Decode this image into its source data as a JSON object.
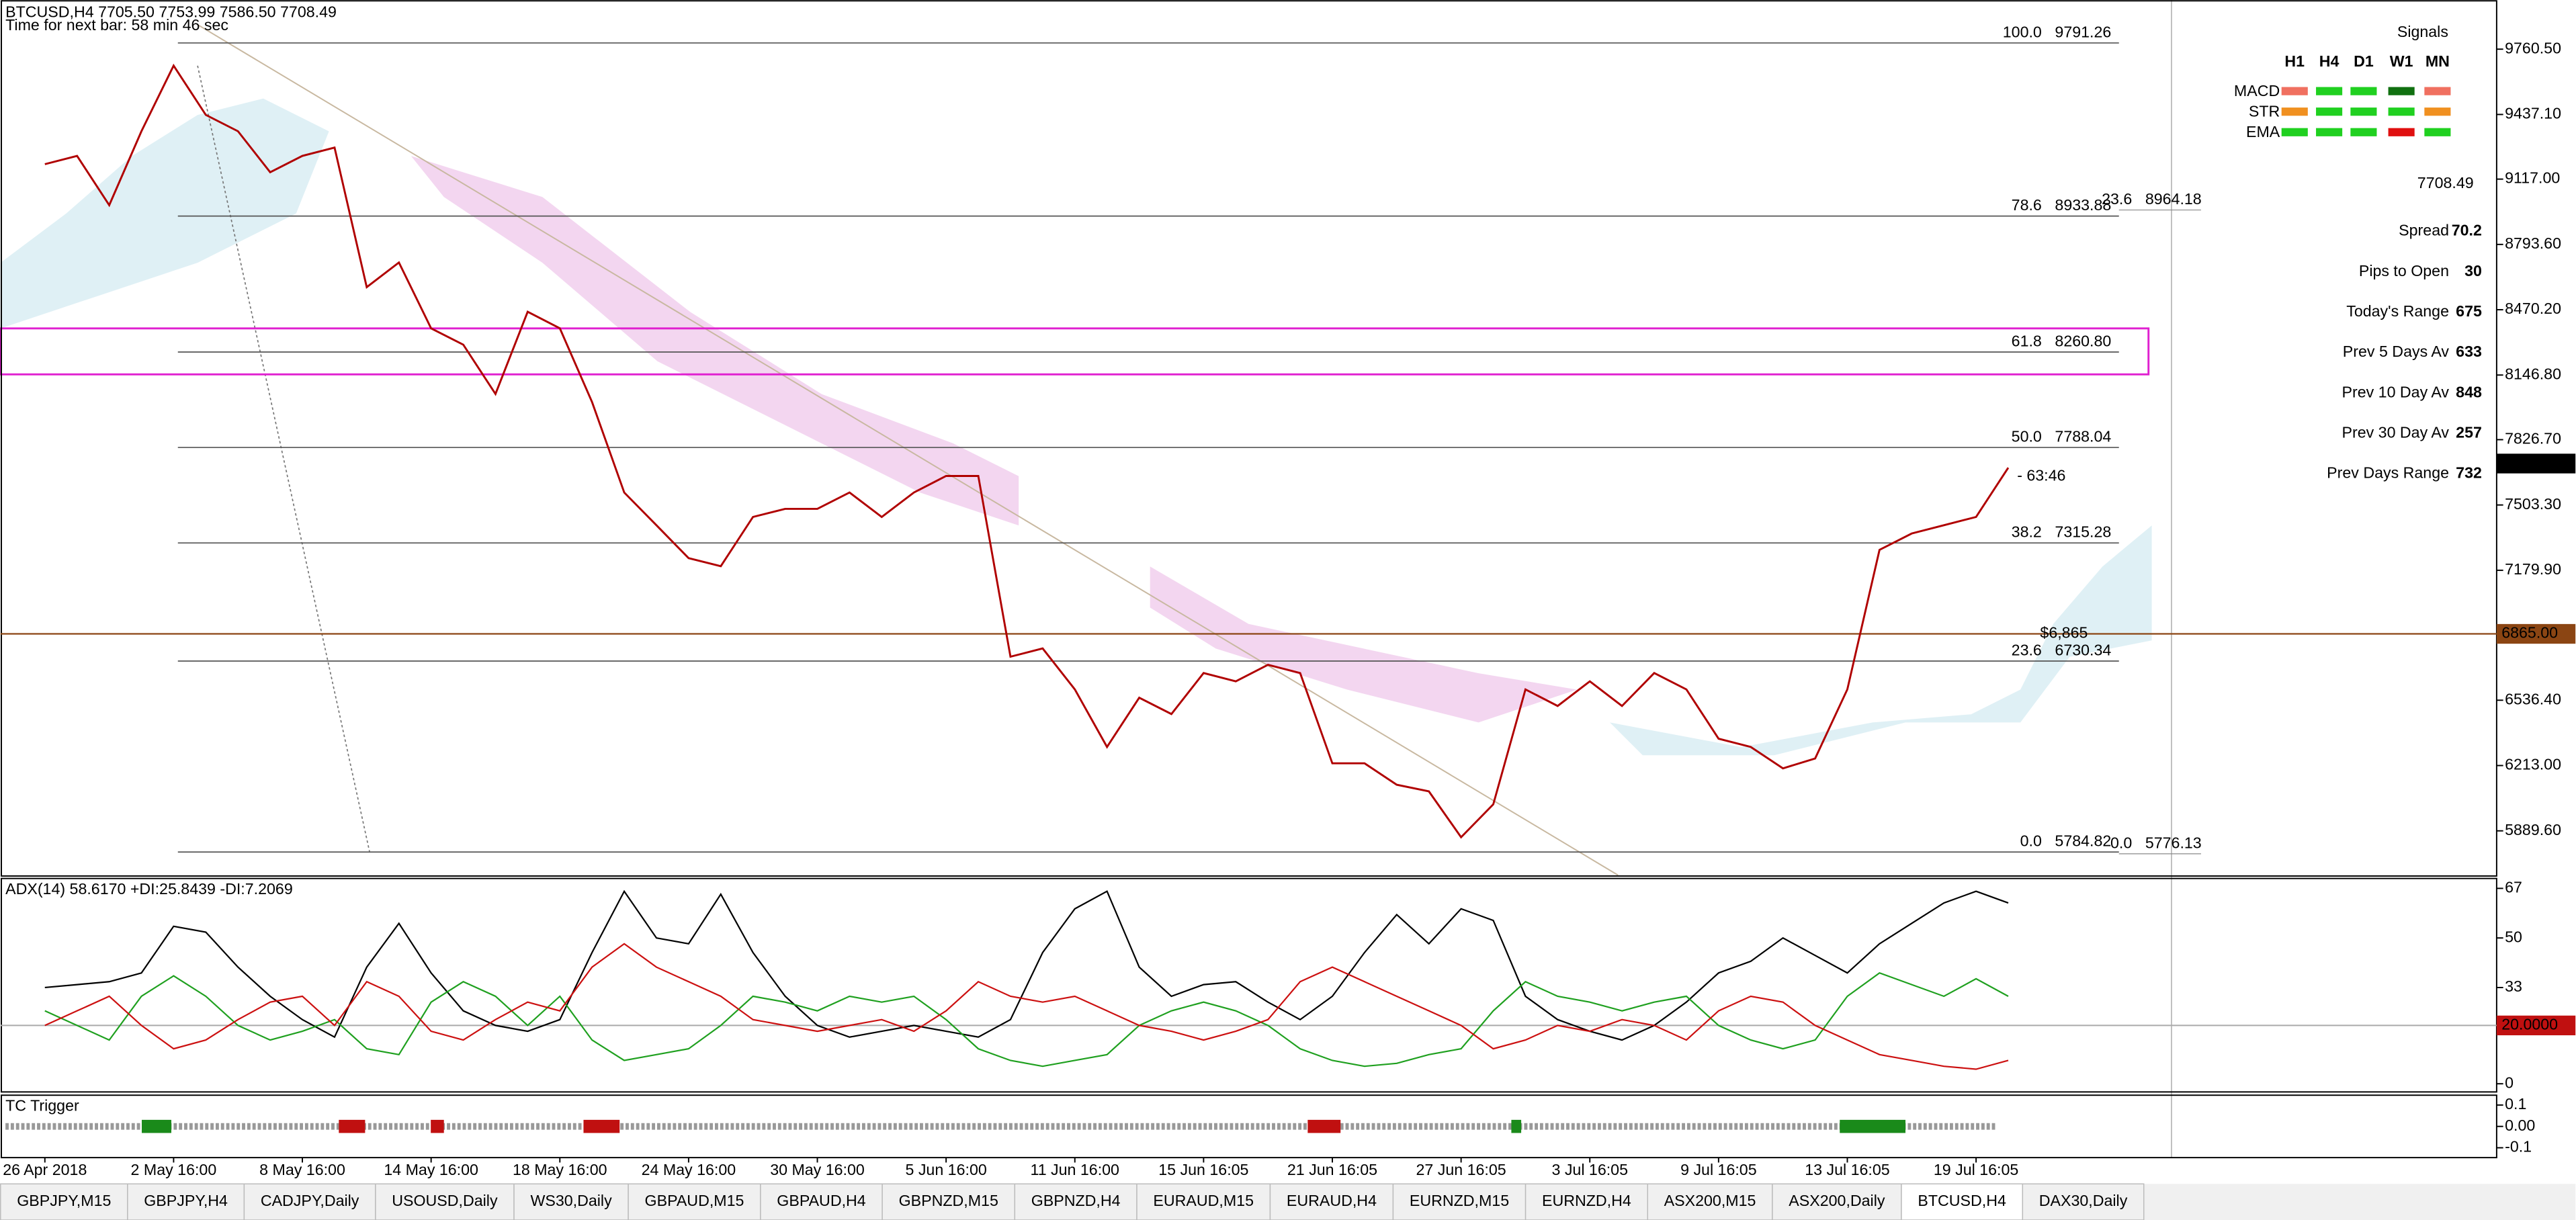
{
  "chart_data": [
    {
      "type": "line",
      "title": "BTCUSD,H4  7705.50 7753.99 7586.50 7708.49",
      "subtitle": "Time for next bar: 58 min 46 sec",
      "categories": [
        "26 Apr 2018",
        null,
        null,
        null,
        "2 May 16:00",
        null,
        null,
        null,
        "8 May 16:00",
        null,
        null,
        null,
        "14 May 16:00",
        null,
        null,
        null,
        "18 May 16:00",
        null,
        null,
        null,
        "24 May 16:00",
        null,
        null,
        null,
        "30 May 16:00",
        null,
        null,
        null,
        "5 Jun 16:00",
        null,
        null,
        null,
        "11 Jun 16:00",
        null,
        null,
        null,
        "15 Jun 16:05",
        null,
        null,
        null,
        "21 Jun 16:05",
        null,
        null,
        null,
        "27 Jun 16:05",
        null,
        null,
        null,
        "3 Jul 16:05",
        null,
        null,
        null,
        "9 Jul 16:05",
        null,
        null,
        null,
        "13 Jul 16:05",
        null,
        null,
        null,
        "19 Jul 16:05",
        null
      ],
      "values": [
        9191,
        9232,
        8988,
        9354,
        9679,
        9435,
        9354,
        9151,
        9232,
        9273,
        8582,
        8704,
        8378,
        8297,
        8053,
        8460,
        8378,
        8013,
        7565,
        7403,
        7240,
        7200,
        7444,
        7484,
        7484,
        7565,
        7444,
        7565,
        7647,
        7647,
        6752,
        6793,
        6590,
        6305,
        6549,
        6468,
        6671,
        6630,
        6712,
        6671,
        6224,
        6224,
        6118,
        6085,
        5858,
        6021,
        6590,
        6508,
        6630,
        6508,
        6671,
        6590,
        6346,
        6305,
        6199,
        6248,
        6590,
        7281,
        7362,
        7403,
        7444,
        7688
      ],
      "color": "#b00000",
      "ylim": [
        5670,
        10004
      ],
      "yticks": [
        {
          "value": 5889.6,
          "label": "5889.60"
        },
        {
          "value": 6213,
          "label": "6213.00"
        },
        {
          "value": 6536.4,
          "label": "6536.40"
        },
        {
          "value": 7179.9,
          "label": "7179.90"
        },
        {
          "value": 7503.3,
          "label": "7503.30"
        },
        {
          "value": 7826.7,
          "label": "7826.70"
        },
        {
          "value": 8146.8,
          "label": "8146.80"
        },
        {
          "value": 8470.2,
          "label": "8470.20"
        },
        {
          "value": 8793.6,
          "label": "8793.60"
        },
        {
          "value": 9117,
          "label": "9117.00"
        },
        {
          "value": 9437.1,
          "label": "9437.10"
        },
        {
          "value": 9760.5,
          "label": "9760.50"
        }
      ],
      "fib_levels": [
        {
          "level": "100.0",
          "price": 9791.26
        },
        {
          "level": "78.6",
          "price": 8933.88
        },
        {
          "level": "61.8",
          "price": {
            "value": 8260.8,
            "label": "8260.80"
          }
        },
        {
          "level": "50.0",
          "price": 7788.04
        },
        {
          "level": "38.2",
          "price": 7315.28
        },
        {
          "level": "23.6",
          "price": 6730.34
        },
        {
          "level": "0.0",
          "price": 5784.82
        }
      ],
      "fib_levels_2": [
        {
          "level": "23.6",
          "price": 8964.18
        },
        {
          "level": "0.0",
          "price": 5776.13
        }
      ],
      "price_line": {
        "value": 6865,
        "label": "6865.00",
        "annotation": "$6,865",
        "color": "#8b4513"
      },
      "current_price": 7708.49,
      "countdown": "- 63:46"
    },
    {
      "type": "line",
      "title": "ADX(14) 58.6170 +DI:25.8439 -DI:7.2069",
      "series": [
        {
          "color": "#000000",
          "values": [
            33,
            34,
            35,
            38,
            54,
            52,
            40,
            30,
            22,
            16,
            40,
            55,
            38,
            25,
            20,
            18,
            22,
            45,
            66,
            50,
            48,
            65,
            45,
            30,
            20,
            16,
            18,
            20,
            18,
            16,
            22,
            45,
            60,
            66,
            40,
            30,
            34,
            35,
            28,
            22,
            30,
            45,
            58,
            48,
            60,
            56,
            30,
            22,
            18,
            15,
            20,
            28,
            38,
            42,
            50,
            44,
            38,
            48,
            55,
            62,
            66,
            62
          ]
        },
        {
          "color": "#1fa01f",
          "values": [
            25,
            20,
            15,
            30,
            37,
            30,
            20,
            15,
            18,
            22,
            12,
            10,
            28,
            35,
            30,
            20,
            30,
            15,
            8,
            10,
            12,
            20,
            30,
            28,
            25,
            30,
            28,
            30,
            22,
            12,
            8,
            6,
            8,
            10,
            20,
            25,
            28,
            25,
            20,
            12,
            8,
            6,
            7,
            10,
            12,
            25,
            35,
            30,
            28,
            25,
            28,
            30,
            20,
            15,
            12,
            15,
            30,
            38,
            34,
            30,
            36,
            30
          ]
        },
        {
          "color": "#cc1010",
          "values": [
            20,
            25,
            30,
            20,
            12,
            15,
            22,
            28,
            30,
            20,
            35,
            30,
            18,
            15,
            22,
            28,
            25,
            40,
            48,
            40,
            35,
            30,
            22,
            20,
            18,
            20,
            22,
            18,
            25,
            35,
            30,
            28,
            30,
            25,
            20,
            18,
            15,
            18,
            22,
            35,
            40,
            35,
            30,
            25,
            20,
            12,
            15,
            20,
            18,
            22,
            20,
            15,
            25,
            30,
            28,
            20,
            15,
            10,
            8,
            6,
            5,
            8
          ]
        }
      ],
      "ylim": [
        -2.8,
        70.4
      ],
      "yticks": [
        0,
        33,
        50,
        67
      ],
      "level": {
        "value": 20,
        "label": "20.0000"
      }
    },
    {
      "type": "signal",
      "title": "TC Trigger",
      "ylim": [
        -0.146,
        0.146
      ],
      "yticks": [
        -0.1,
        {
          "value": 0,
          "label": "0.00"
        },
        0.1
      ]
    }
  ],
  "signals": {
    "title": "Signals",
    "columns": [
      "H1",
      "H4",
      "D1",
      "W1",
      "MN"
    ],
    "rows": [
      {
        "name": "MACD",
        "colors": [
          "#f07060",
          "#20d020",
          "#20d020",
          "#107010",
          "#f07060"
        ]
      },
      {
        "name": "STR",
        "colors": [
          "#f09020",
          "#20d020",
          "#20d020",
          "#20d020",
          "#f09020"
        ]
      },
      {
        "name": "EMA",
        "colors": [
          "#20d020",
          "#20d020",
          "#20d020",
          "#e01010",
          "#20d020"
        ]
      }
    ]
  },
  "info": {
    "price": 7708.49,
    "rows": [
      {
        "label": "Spread",
        "value": 70.2,
        "color": "#f09020"
      },
      {
        "label": "Pips to Open",
        "value": 30,
        "color": "#20c020"
      },
      {
        "label": "Today's Range",
        "value": 675,
        "color": "#20a020"
      },
      {
        "label": "Prev 5 Days Av",
        "value": 633,
        "color": "#20a020"
      },
      {
        "label": "Prev 10 Day Av",
        "value": 848,
        "color": "#20a020"
      },
      {
        "label": "Prev 30 Day Av",
        "value": 257,
        "color": "#20a020"
      },
      {
        "label": "Prev Days Range",
        "value": 732,
        "color": "#20a020"
      }
    ]
  },
  "tabs": {
    "items": [
      "GBPJPY,M15",
      "GBPJPY,H4",
      "CADJPY,Daily",
      "USOUSD,Daily",
      "WS30,Daily",
      "GBPAUD,M15",
      "GBPAUD,H4",
      "GBPNZD,M15",
      "GBPNZD,H4",
      "EURAUD,M15",
      "EURAUD,H4",
      "EURNZD,M15",
      "EURNZD,H4",
      "ASX200,M15",
      "ASX200,Daily",
      "BTCUSD,H4",
      "DAX30,Daily"
    ],
    "active": "BTCUSD,H4"
  }
}
